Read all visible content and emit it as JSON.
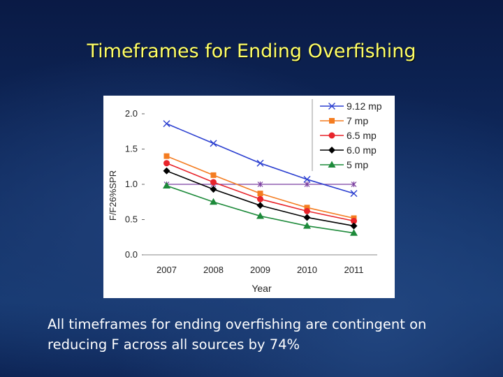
{
  "slide": {
    "title": "Timeframes for Ending Overfishing",
    "caption_line1": "All timeframes for ending overfishing are contingent on",
    "caption_line2": "reducing F across all sources by 74%"
  },
  "colors": {
    "title": "#ffff66",
    "caption": "#ffffff"
  },
  "chart_data": {
    "type": "line",
    "xlabel": "Year",
    "ylabel": "F/F26%SPR",
    "categories": [
      "2007",
      "2008",
      "2009",
      "2010",
      "2011"
    ],
    "ylim": [
      0,
      2.0
    ],
    "yticks": [
      "0.0",
      "0.5",
      "1.0",
      "1.5",
      "2.0"
    ],
    "grid": false,
    "legend_position": "top-right",
    "reference_line": {
      "value": 1.0,
      "color": "#7b3fa0",
      "marker": "asterisk"
    },
    "series": [
      {
        "name": "9.12 mp",
        "color": "#2b3fd0",
        "marker": "x",
        "values": [
          1.86,
          1.58,
          1.3,
          1.07,
          0.87
        ]
      },
      {
        "name": "7 mp",
        "color": "#f47c20",
        "marker": "square",
        "values": [
          1.4,
          1.13,
          0.87,
          0.67,
          0.52
        ]
      },
      {
        "name": "6.5 mp",
        "color": "#e8242b",
        "marker": "circle",
        "values": [
          1.3,
          1.03,
          0.79,
          0.62,
          0.48
        ]
      },
      {
        "name": "6.0 mp",
        "color": "#000000",
        "marker": "diamond",
        "values": [
          1.19,
          0.93,
          0.7,
          0.53,
          0.41
        ]
      },
      {
        "name": "5 mp",
        "color": "#1d8a3a",
        "marker": "triangle",
        "values": [
          0.98,
          0.75,
          0.55,
          0.41,
          0.31
        ]
      }
    ]
  }
}
